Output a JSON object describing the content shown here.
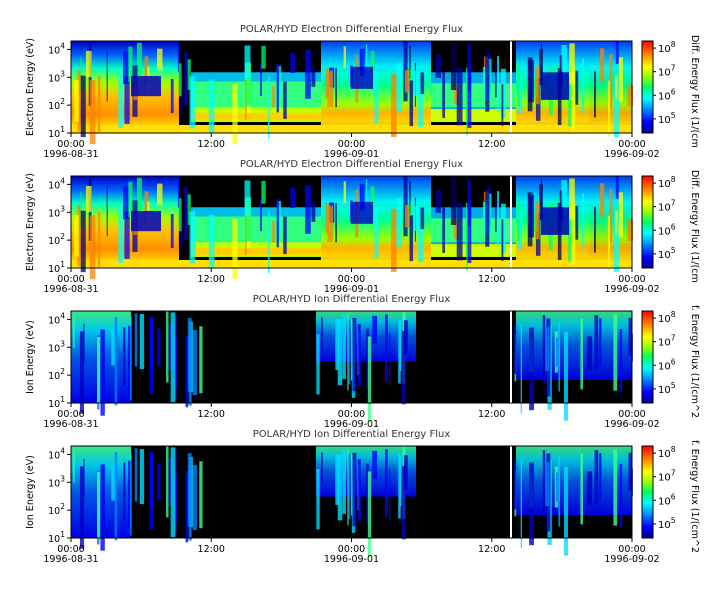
{
  "chart_data": [
    {
      "type": "heatmap",
      "title": "POLAR/HYD  Electron Differential Energy Flux",
      "ylabel": "Electron Energy (eV)",
      "yscale": "log",
      "ylim": [
        10,
        20000
      ],
      "y_ticks": [
        {
          "base": "10",
          "exp": "1"
        },
        {
          "base": "10",
          "exp": "2"
        },
        {
          "base": "10",
          "exp": "3"
        },
        {
          "base": "10",
          "exp": "4"
        }
      ],
      "x_ticks": [
        "00:00",
        "12:00",
        "00:00",
        "12:00",
        "00:00"
      ],
      "date_labels": [
        "1996-08-31",
        "1996-09-01",
        "1996-09-02"
      ],
      "colorbar_label": "Diff. Energy Flux (1/(cm",
      "colorbar_ticks": [
        {
          "base": "10",
          "exp": "5"
        },
        {
          "base": "10",
          "exp": "6"
        },
        {
          "base": "10",
          "exp": "7"
        },
        {
          "base": "10",
          "exp": "8"
        }
      ],
      "colorscale": "rainbow"
    },
    {
      "type": "heatmap",
      "title": "POLAR/HYD  Electron Differential Energy Flux",
      "ylabel": "Electron Energy (eV)",
      "yscale": "log",
      "ylim": [
        10,
        20000
      ],
      "y_ticks": [
        {
          "base": "10",
          "exp": "1"
        },
        {
          "base": "10",
          "exp": "2"
        },
        {
          "base": "10",
          "exp": "3"
        },
        {
          "base": "10",
          "exp": "4"
        }
      ],
      "x_ticks": [
        "00:00",
        "12:00",
        "00:00",
        "12:00",
        "00:00"
      ],
      "date_labels": [
        "1996-08-31",
        "1996-09-01",
        "1996-09-02"
      ],
      "colorbar_label": "Diff. Energy Flux (1/(cm",
      "colorbar_ticks": [
        {
          "base": "10",
          "exp": "5"
        },
        {
          "base": "10",
          "exp": "6"
        },
        {
          "base": "10",
          "exp": "7"
        },
        {
          "base": "10",
          "exp": "8"
        }
      ],
      "colorscale": "rainbow"
    },
    {
      "type": "heatmap",
      "title": "POLAR/HYD  Ion Differential Energy Flux",
      "ylabel": "Ion Energy (eV)",
      "yscale": "log",
      "ylim": [
        10,
        20000
      ],
      "y_ticks": [
        {
          "base": "10",
          "exp": "1"
        },
        {
          "base": "10",
          "exp": "2"
        },
        {
          "base": "10",
          "exp": "3"
        },
        {
          "base": "10",
          "exp": "4"
        }
      ],
      "x_ticks": [
        "00:00",
        "12:00",
        "00:00",
        "12:00",
        "00:00"
      ],
      "date_labels": [
        "1996-08-31",
        "1996-09-01",
        "1996-09-02"
      ],
      "colorbar_label": "f. Energy Flux (1/(cm^2",
      "colorbar_ticks": [
        {
          "base": "10",
          "exp": "5"
        },
        {
          "base": "10",
          "exp": "6"
        },
        {
          "base": "10",
          "exp": "7"
        },
        {
          "base": "10",
          "exp": "8"
        }
      ],
      "colorscale": "rainbow"
    },
    {
      "type": "heatmap",
      "title": "POLAR/HYD  Ion Differential Energy Flux",
      "ylabel": "Ion Energy (eV)",
      "yscale": "log",
      "ylim": [
        10,
        20000
      ],
      "y_ticks": [
        {
          "base": "10",
          "exp": "1"
        },
        {
          "base": "10",
          "exp": "2"
        },
        {
          "base": "10",
          "exp": "3"
        },
        {
          "base": "10",
          "exp": "4"
        }
      ],
      "x_ticks": [
        "00:00",
        "12:00",
        "00:00",
        "12:00",
        "00:00"
      ],
      "date_labels": [
        "1996-08-31",
        "1996-09-01",
        "1996-09-02"
      ],
      "colorbar_label": "f. Energy Flux (1/(cm^2",
      "colorbar_ticks": [
        {
          "base": "10",
          "exp": "5"
        },
        {
          "base": "10",
          "exp": "6"
        },
        {
          "base": "10",
          "exp": "7"
        },
        {
          "base": "10",
          "exp": "8"
        }
      ],
      "colorscale": "rainbow"
    }
  ]
}
